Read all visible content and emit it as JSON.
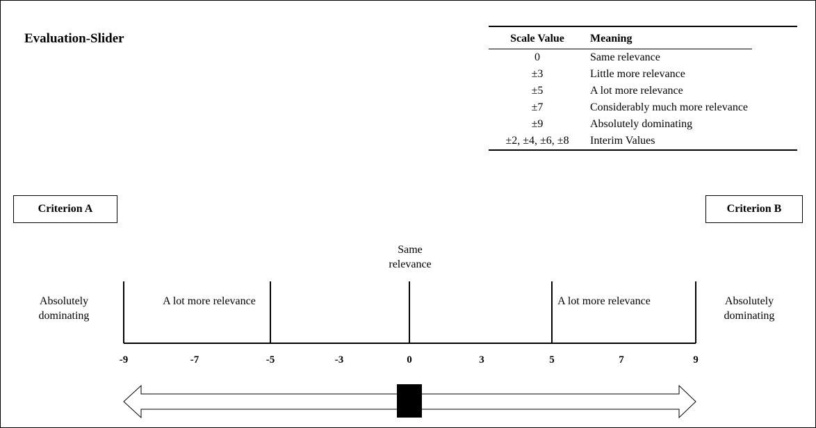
{
  "title": "Evaluation-Slider",
  "legend": {
    "headers": [
      "Scale Value",
      "Meaning"
    ],
    "rows": [
      [
        "0",
        "Same relevance"
      ],
      [
        "±3",
        "Little more relevance"
      ],
      [
        "±5",
        "A lot more relevance"
      ],
      [
        "±7",
        "Considerably much more relevance"
      ],
      [
        "±9",
        "Absolutely dominating"
      ],
      [
        "±2, ±4, ±6, ±8",
        "Interim Values"
      ]
    ]
  },
  "criterion_a": "Criterion A",
  "criterion_b": "Criterion B",
  "labels": {
    "same": "Same relevance",
    "abs_left": "Absolutely dominating",
    "lot_left": "A lot more relevance",
    "lot_right": "A lot more relevance",
    "abs_right": "Absolutely dominating"
  },
  "scale": {
    "ticks": [
      -9,
      -7,
      -5,
      -3,
      0,
      3,
      5,
      7,
      9
    ],
    "major_ticks": [
      -9,
      -5,
      0,
      5,
      9
    ],
    "slider_value": 0
  }
}
